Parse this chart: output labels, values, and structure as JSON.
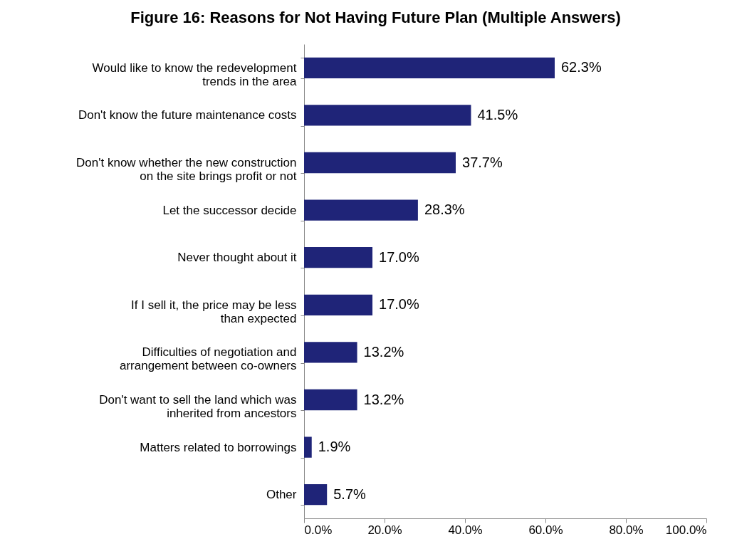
{
  "chart_data": {
    "type": "bar",
    "orientation": "horizontal",
    "title": "Figure 16: Reasons for Not Having Future Plan (Multiple Answers)",
    "categories": [
      "Would like to know the redevelopment trends in the area",
      "Don't know the future maintenance costs",
      "Don't know whether the new construction on the site brings profit or not",
      "Let the successor decide",
      "Never thought about it",
      "If I sell it, the price may be less than expected",
      "Difficulties of negotiation and arrangement between co-owners",
      "Don't want to sell the land which was inherited from ancestors",
      "Matters related to borrowings",
      "Other"
    ],
    "values": [
      62.3,
      41.5,
      37.7,
      28.3,
      17.0,
      17.0,
      13.2,
      13.2,
      1.9,
      5.7
    ],
    "value_labels": [
      "62.3%",
      "41.5%",
      "37.7%",
      "28.3%",
      "17.0%",
      "17.0%",
      "13.2%",
      "13.2%",
      "1.9%",
      "5.7%"
    ],
    "color": "#1f2478",
    "xlim": [
      0,
      100
    ],
    "xticks": [
      {
        "value": 0,
        "label": "0.0%"
      },
      {
        "value": 20,
        "label": "20.0%"
      },
      {
        "value": 40,
        "label": "40.0%"
      },
      {
        "value": 60,
        "label": "60.0%"
      },
      {
        "value": 80,
        "label": "80.0%"
      },
      {
        "value": 100,
        "label": "100.0%"
      }
    ],
    "grid": false
  }
}
